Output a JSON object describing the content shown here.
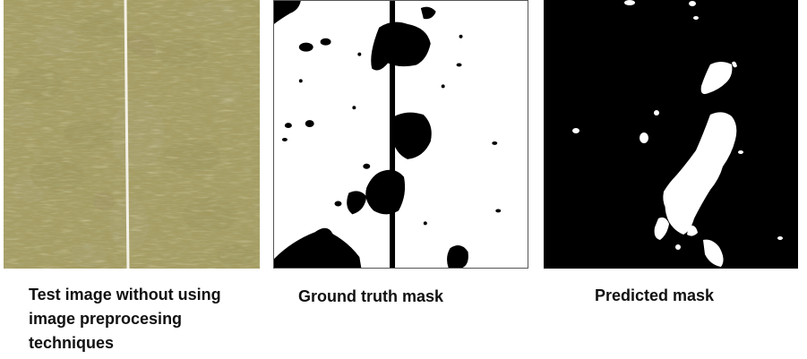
{
  "captions": {
    "test_image": "Test image without using image preprocesing techniques",
    "ground_truth": "Ground truth mask",
    "predicted": "Predicted mask"
  },
  "colors": {
    "grass_base": "#a59d63",
    "grass_dark": "#6f6e3e",
    "grass_light": "#c9bd80",
    "soil": "#b9b7ad",
    "moss_patch": "#7a5c58",
    "mask_background": "#ffffff",
    "mask_foreground": "#000000"
  }
}
